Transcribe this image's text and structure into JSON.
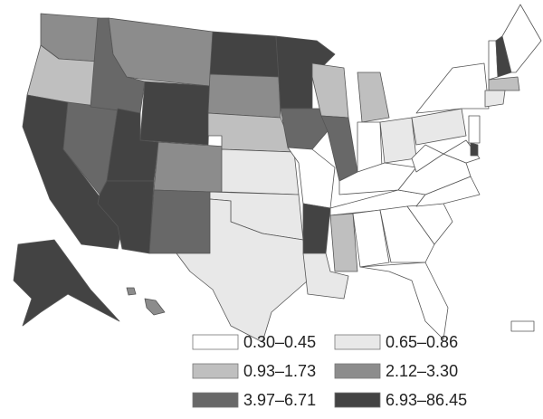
{
  "legend": {
    "items": [
      {
        "label": "0.30–0.45",
        "color": "#ffffff"
      },
      {
        "label": "0.65–0.86",
        "color": "#e8e8e8"
      },
      {
        "label": "0.93–1.73",
        "color": "#bfbfbf"
      },
      {
        "label": "2.12–3.30",
        "color": "#8c8c8c"
      },
      {
        "label": "3.97–6.71",
        "color": "#686868"
      },
      {
        "label": "6.93–86.45",
        "color": "#434343"
      }
    ]
  }
}
